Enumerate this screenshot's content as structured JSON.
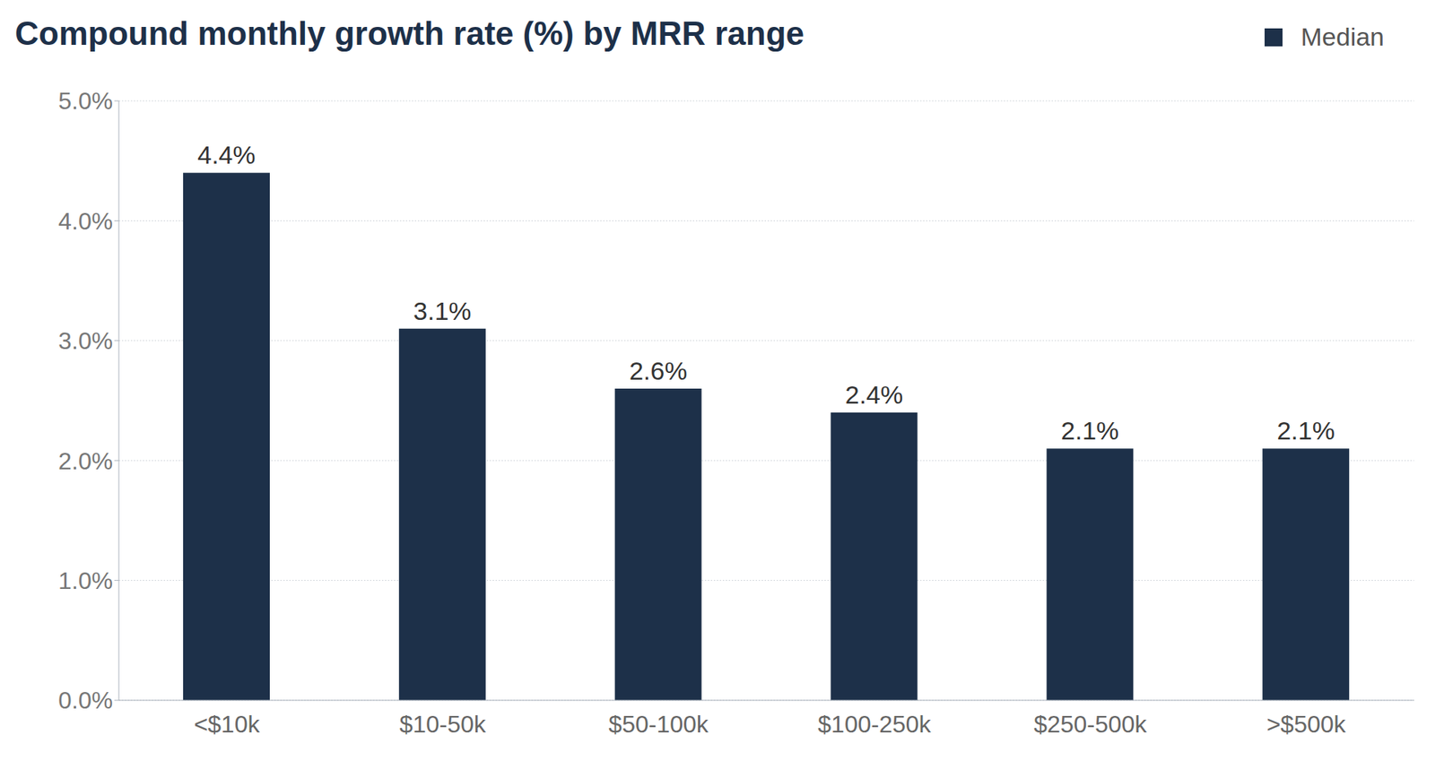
{
  "chart_data": {
    "type": "bar",
    "title": "Compound monthly growth rate (%) by MRR range",
    "categories": [
      "<$10k",
      "$10-50k",
      "$50-100k",
      "$100-250k",
      "$250-500k",
      ">$500k"
    ],
    "series": [
      {
        "name": "Median",
        "color": "#1d3049",
        "values": [
          4.4,
          3.1,
          2.6,
          2.4,
          2.1,
          2.1
        ],
        "value_labels": [
          "4.4%",
          "3.1%",
          "2.6%",
          "2.4%",
          "2.1%",
          "2.1%"
        ]
      }
    ],
    "ylim": [
      0,
      5
    ],
    "yticks": [
      {
        "value": 0,
        "label": "0.0%"
      },
      {
        "value": 1,
        "label": "1.0%"
      },
      {
        "value": 2,
        "label": "2.0%"
      },
      {
        "value": 3,
        "label": "3.0%"
      },
      {
        "value": 4,
        "label": "4.0%"
      },
      {
        "value": 5,
        "label": "5.0%"
      }
    ],
    "grid": true,
    "data_labels": true,
    "legend": "upper right"
  }
}
